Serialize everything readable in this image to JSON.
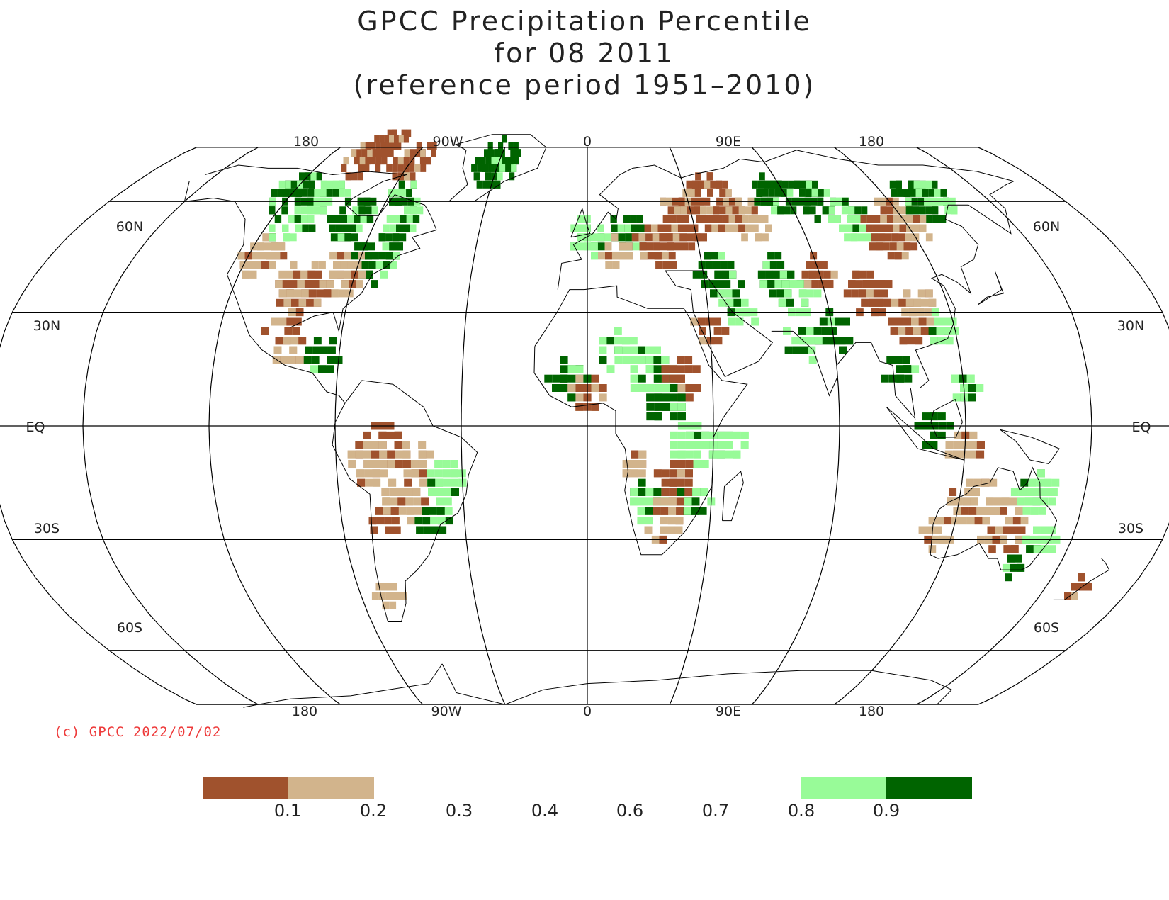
{
  "title": {
    "line1": "GPCC Precipitation Percentile",
    "line2": "for 08 2011",
    "line3": "(reference period 1951–2010)"
  },
  "map": {
    "projection": "robinson",
    "longitude_labels_top": [
      "180",
      "90W",
      "0",
      "90E",
      "180"
    ],
    "longitude_labels_bottom": [
      "180",
      "90W",
      "0",
      "90E",
      "180"
    ],
    "latitude_labels_left": [
      "60N",
      "30N",
      "EQ",
      "30S",
      "60S"
    ],
    "latitude_labels_right": [
      "60N",
      "30N",
      "EQ",
      "30S",
      "60S"
    ],
    "colors": {
      "below_0_1": "#a0522d",
      "0_1_to_0_2": "#d2b48c",
      "0_8_to_0_9": "#98fb98",
      "above_0_9": "#006400"
    }
  },
  "credit": "(c) GPCC 2022/07/02",
  "legend": {
    "ticks": [
      "0.1",
      "0.2",
      "0.3",
      "0.4",
      "0.6",
      "0.7",
      "0.8",
      "0.9"
    ],
    "bins": [
      {
        "range": "<0.1",
        "color": "#a0522d"
      },
      {
        "range": "0.1-0.2",
        "color": "#d2b48c"
      },
      {
        "range": "0.2-0.3",
        "color": "#ffffff"
      },
      {
        "range": "0.3-0.4",
        "color": "#ffffff"
      },
      {
        "range": "0.4-0.6",
        "color": "#ffffff"
      },
      {
        "range": "0.6-0.7",
        "color": "#ffffff"
      },
      {
        "range": "0.7-0.8",
        "color": "#ffffff"
      },
      {
        "range": "0.8-0.9",
        "color": "#98fb98"
      },
      {
        "range": ">0.9",
        "color": "#006400"
      }
    ]
  }
}
